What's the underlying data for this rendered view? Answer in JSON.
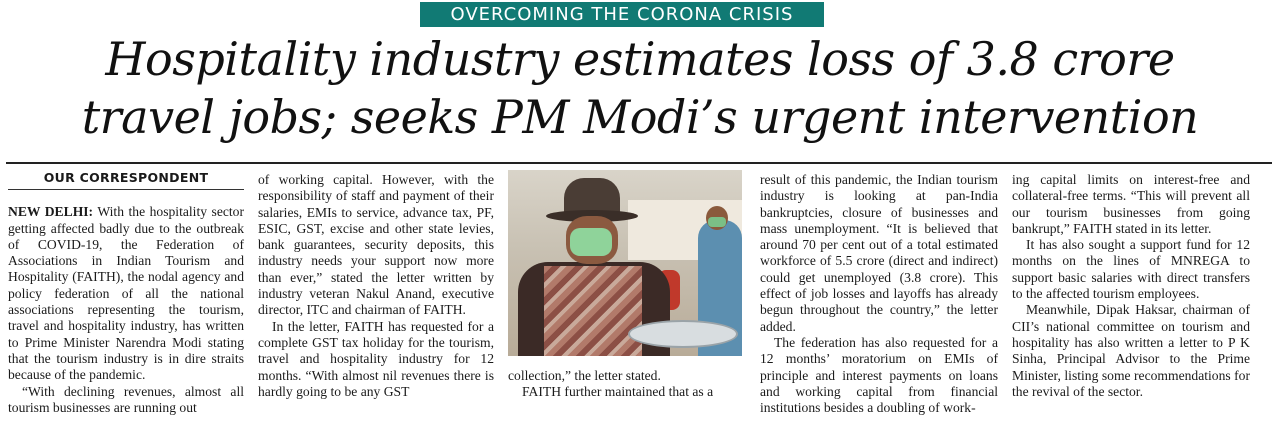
{
  "kicker": "OVERCOMING THE CORONA CRISIS",
  "headline": {
    "line1": "Hospitality industry estimates loss of 3.8 crore",
    "line2": "travel jobs; seeks PM Modi’s urgent intervention"
  },
  "byline": "OUR CORRESPONDENT",
  "dateline": "NEW DELHI:",
  "columns": {
    "c1": {
      "p1": "With the hospitality sector getting affected badly due to the outbreak of COVID-19, the Federation of Associations in Indian Tourism and Hospitality (FAITH), the nodal agency and policy federation of all the national associations representing the tourism, travel and hospitality industry, has written to Prime Minister Narendra Modi stating that the tourism industry is in dire straits because of the pandemic.",
      "p2": "“With declining revenues, almost all tourism businesses are running out"
    },
    "c2": {
      "p1": "of working capital. However, with the responsibility of staff and payment of their salaries, EMIs to service, advance tax, PF, ESIC, GST, excise and other state levies, bank guarantees, security deposits, this industry needs your support now more than ever,” stated the letter written by industry veteran Nakul Anand, executive director, ITC and chairman of FAITH.",
      "p2": "In the letter, FAITH has requested for a complete GST tax holiday for the tourism, travel and hospitality industry for 12 months. “With almost nil revenues there is hardly going to be any GST"
    },
    "c3": {
      "p1": "collection,” the letter stated.",
      "p2": "FAITH further maintained that as a"
    },
    "c4": {
      "p1": "result of this pandemic, the Indian tourism industry is looking at pan-India bankruptcies, closure of businesses and mass unemployment. “It is believed that around 70 per cent out of a total estimated workforce of 5.5 crore (direct and indirect) could get unemployed (3.8 crore). This effect of job losses and layoffs has already begun throughout the country,” the letter added.",
      "p2": "The federation has also requested for a 12 months’ moratorium on EMIs of principle and interest payments on loans and working capital from financial institutions besides a doubling of work-"
    },
    "c5": {
      "p1": "ing capital limits on interest-free and collateral-free terms. “This will prevent all our tourism businesses from going bankrupt,” FAITH stated in its letter.",
      "p2": "It has also sought a support fund for 12 months on the lines of MNREGA to support basic salaries with direct transfers to the affected tourism employees.",
      "p3": "Meanwhile, Dipak Haksar, chairman of CII’s national committee on tourism and hospitality has also written a letter to P K Sinha, Principal Advisor to the Prime Minister, listing some recommendations for the revival of the sector."
    }
  }
}
